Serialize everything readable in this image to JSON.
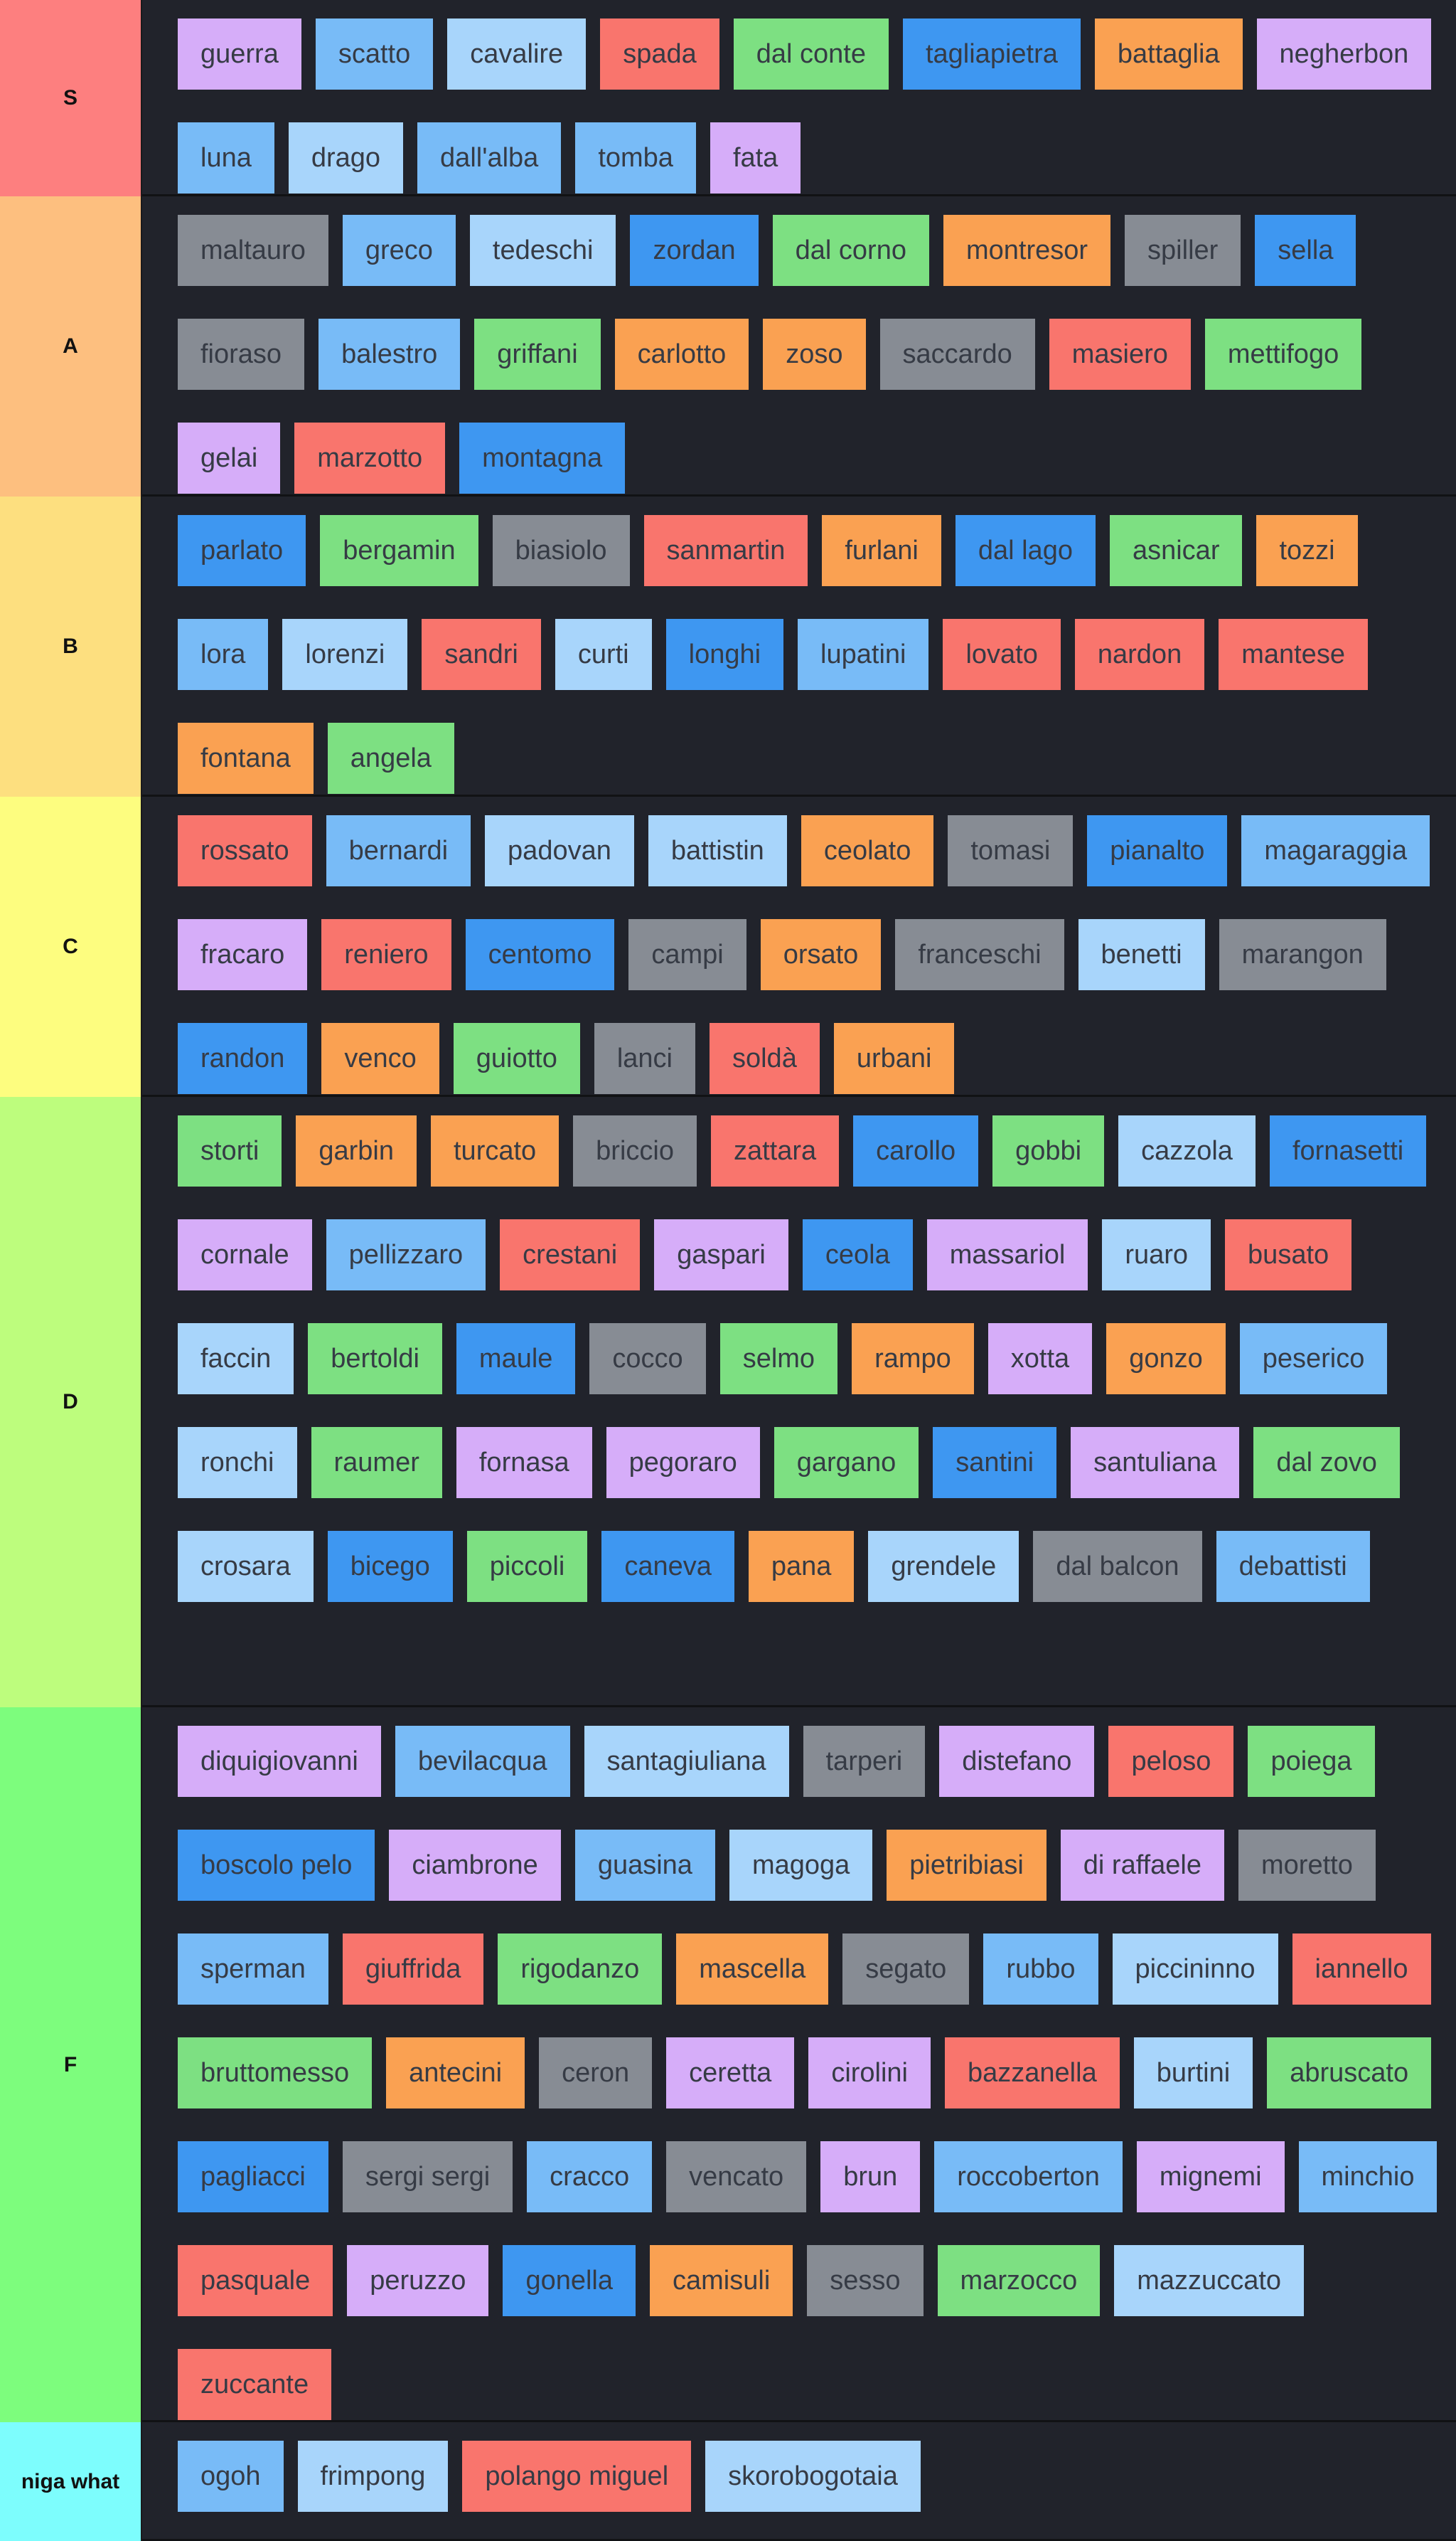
{
  "colors": {
    "purple": "#d6adf9",
    "lightblue": "#78bbf7",
    "paleblue": "#a8d5fb",
    "red": "#f9756d",
    "green": "#7de082",
    "blue": "#3e97f1",
    "orange": "#faa152",
    "gray": "#878c94",
    "row_background": "#21232b",
    "chip_text": "#363b45"
  },
  "tiers": [
    {
      "label": "S",
      "color": "#fd7f7f",
      "items": [
        {
          "name": "guerra",
          "color": "purple"
        },
        {
          "name": "scatto",
          "color": "lightblue"
        },
        {
          "name": "cavalire",
          "color": "paleblue"
        },
        {
          "name": "spada",
          "color": "red"
        },
        {
          "name": "dal conte",
          "color": "green"
        },
        {
          "name": "tagliapietra",
          "color": "blue"
        },
        {
          "name": "battaglia",
          "color": "orange"
        },
        {
          "name": "negherbon",
          "color": "purple"
        },
        {
          "name": "luna",
          "color": "lightblue"
        },
        {
          "name": "drago",
          "color": "paleblue"
        },
        {
          "name": "dall'alba",
          "color": "lightblue"
        },
        {
          "name": "tomba",
          "color": "lightblue"
        },
        {
          "name": "fata",
          "color": "purple"
        }
      ]
    },
    {
      "label": "A",
      "color": "#fdbf7f",
      "items": [
        {
          "name": "maltauro",
          "color": "gray"
        },
        {
          "name": "greco",
          "color": "lightblue"
        },
        {
          "name": "tedeschi",
          "color": "paleblue"
        },
        {
          "name": "zordan",
          "color": "blue"
        },
        {
          "name": "dal corno",
          "color": "green"
        },
        {
          "name": "montresor",
          "color": "orange"
        },
        {
          "name": "spiller",
          "color": "gray"
        },
        {
          "name": "sella",
          "color": "blue"
        },
        {
          "name": "fioraso",
          "color": "gray"
        },
        {
          "name": "balestro",
          "color": "lightblue"
        },
        {
          "name": "griffani",
          "color": "green"
        },
        {
          "name": "carlotto",
          "color": "orange"
        },
        {
          "name": "zoso",
          "color": "orange"
        },
        {
          "name": "saccardo",
          "color": "gray"
        },
        {
          "name": "masiero",
          "color": "red"
        },
        {
          "name": "mettifogo",
          "color": "green"
        },
        {
          "name": "gelai",
          "color": "purple"
        },
        {
          "name": "marzotto",
          "color": "red"
        },
        {
          "name": "montagna",
          "color": "blue"
        }
      ]
    },
    {
      "label": "B",
      "color": "#fddf7f",
      "items": [
        {
          "name": "parlato",
          "color": "blue"
        },
        {
          "name": "bergamin",
          "color": "green"
        },
        {
          "name": "biasiolo",
          "color": "gray"
        },
        {
          "name": "sanmartin",
          "color": "red"
        },
        {
          "name": "furlani",
          "color": "orange"
        },
        {
          "name": "dal lago",
          "color": "blue"
        },
        {
          "name": "asnicar",
          "color": "green"
        },
        {
          "name": "tozzi",
          "color": "orange"
        },
        {
          "name": "lora",
          "color": "lightblue"
        },
        {
          "name": "lorenzi",
          "color": "paleblue"
        },
        {
          "name": "sandri",
          "color": "red"
        },
        {
          "name": "curti",
          "color": "paleblue"
        },
        {
          "name": "longhi",
          "color": "blue"
        },
        {
          "name": "lupatini",
          "color": "lightblue"
        },
        {
          "name": "lovato",
          "color": "red"
        },
        {
          "name": "nardon",
          "color": "red"
        },
        {
          "name": "mantese",
          "color": "red"
        },
        {
          "name": "fontana",
          "color": "orange"
        },
        {
          "name": "angela",
          "color": "green"
        }
      ]
    },
    {
      "label": "C",
      "color": "#fdfd7f",
      "items": [
        {
          "name": "rossato",
          "color": "red"
        },
        {
          "name": "bernardi",
          "color": "lightblue"
        },
        {
          "name": "padovan",
          "color": "paleblue"
        },
        {
          "name": "battistin",
          "color": "paleblue"
        },
        {
          "name": "ceolato",
          "color": "orange"
        },
        {
          "name": "tomasi",
          "color": "gray"
        },
        {
          "name": "pianalto",
          "color": "blue"
        },
        {
          "name": "magaraggia",
          "color": "lightblue"
        },
        {
          "name": "fracaro",
          "color": "purple"
        },
        {
          "name": "reniero",
          "color": "red"
        },
        {
          "name": "centomo",
          "color": "blue"
        },
        {
          "name": "campi",
          "color": "gray"
        },
        {
          "name": "orsato",
          "color": "orange"
        },
        {
          "name": "franceschi",
          "color": "gray"
        },
        {
          "name": "benetti",
          "color": "paleblue"
        },
        {
          "name": "marangon",
          "color": "gray"
        },
        {
          "name": "randon",
          "color": "blue"
        },
        {
          "name": "venco",
          "color": "orange"
        },
        {
          "name": "guiotto",
          "color": "green"
        },
        {
          "name": "lanci",
          "color": "gray"
        },
        {
          "name": "soldà",
          "color": "red"
        },
        {
          "name": "urbani",
          "color": "orange"
        }
      ]
    },
    {
      "label": "D",
      "color": "#bdfd7d",
      "items": [
        {
          "name": "storti",
          "color": "green"
        },
        {
          "name": "garbin",
          "color": "orange"
        },
        {
          "name": "turcato",
          "color": "orange"
        },
        {
          "name": "briccio",
          "color": "gray"
        },
        {
          "name": "zattara",
          "color": "red"
        },
        {
          "name": "carollo",
          "color": "blue"
        },
        {
          "name": "gobbi",
          "color": "green"
        },
        {
          "name": "cazzola",
          "color": "paleblue"
        },
        {
          "name": "fornasetti",
          "color": "blue"
        },
        {
          "name": "cornale",
          "color": "purple"
        },
        {
          "name": "pellizzaro",
          "color": "lightblue"
        },
        {
          "name": "crestani",
          "color": "red"
        },
        {
          "name": "gaspari",
          "color": "purple"
        },
        {
          "name": "ceola",
          "color": "blue"
        },
        {
          "name": "massariol",
          "color": "purple"
        },
        {
          "name": "ruaro",
          "color": "paleblue"
        },
        {
          "name": "busato",
          "color": "red"
        },
        {
          "name": "faccin",
          "color": "paleblue"
        },
        {
          "name": "bertoldi",
          "color": "green"
        },
        {
          "name": "maule",
          "color": "blue"
        },
        {
          "name": "cocco",
          "color": "gray"
        },
        {
          "name": "selmo",
          "color": "green"
        },
        {
          "name": "rampo",
          "color": "orange"
        },
        {
          "name": "xotta",
          "color": "purple"
        },
        {
          "name": "gonzo",
          "color": "orange"
        },
        {
          "name": "peserico",
          "color": "lightblue"
        },
        {
          "name": "ronchi",
          "color": "paleblue"
        },
        {
          "name": "raumer",
          "color": "green"
        },
        {
          "name": "fornasa",
          "color": "purple"
        },
        {
          "name": "pegoraro",
          "color": "purple"
        },
        {
          "name": "gargano",
          "color": "green"
        },
        {
          "name": "santini",
          "color": "blue"
        },
        {
          "name": "santuliana",
          "color": "purple"
        },
        {
          "name": "dal zovo",
          "color": "green"
        },
        {
          "name": "crosara",
          "color": "paleblue"
        },
        {
          "name": "bicego",
          "color": "blue"
        },
        {
          "name": "piccoli",
          "color": "green"
        },
        {
          "name": "caneva",
          "color": "blue"
        },
        {
          "name": "pana",
          "color": "orange"
        },
        {
          "name": "grendele",
          "color": "paleblue"
        },
        {
          "name": "dal balcon",
          "color": "gray"
        },
        {
          "name": "debattisti",
          "color": "lightblue"
        }
      ]
    },
    {
      "label": "F",
      "color": "#7dfd7d",
      "items": [
        {
          "name": "diquigiovanni",
          "color": "purple"
        },
        {
          "name": "bevilacqua",
          "color": "lightblue"
        },
        {
          "name": "santagiuliana",
          "color": "paleblue"
        },
        {
          "name": "tarperi",
          "color": "gray"
        },
        {
          "name": "distefano",
          "color": "purple"
        },
        {
          "name": "peloso",
          "color": "red"
        },
        {
          "name": "poiega",
          "color": "green"
        },
        {
          "name": "boscolo pelo",
          "color": "blue"
        },
        {
          "name": "ciambrone",
          "color": "purple"
        },
        {
          "name": "guasina",
          "color": "lightblue"
        },
        {
          "name": "magoga",
          "color": "paleblue"
        },
        {
          "name": "pietribiasi",
          "color": "orange"
        },
        {
          "name": "di raffaele",
          "color": "purple"
        },
        {
          "name": "moretto",
          "color": "gray"
        },
        {
          "name": "sperman",
          "color": "lightblue"
        },
        {
          "name": "giuffrida",
          "color": "red"
        },
        {
          "name": "rigodanzo",
          "color": "green"
        },
        {
          "name": "mascella",
          "color": "orange"
        },
        {
          "name": "segato",
          "color": "gray"
        },
        {
          "name": "rubbo",
          "color": "lightblue"
        },
        {
          "name": "piccininno",
          "color": "paleblue"
        },
        {
          "name": "iannello",
          "color": "red"
        },
        {
          "name": "bruttomesso",
          "color": "green"
        },
        {
          "name": "antecini",
          "color": "orange"
        },
        {
          "name": "ceron",
          "color": "gray"
        },
        {
          "name": "ceretta",
          "color": "purple"
        },
        {
          "name": "cirolini",
          "color": "purple"
        },
        {
          "name": "bazzanella",
          "color": "red"
        },
        {
          "name": "burtini",
          "color": "paleblue"
        },
        {
          "name": "abruscato",
          "color": "green"
        },
        {
          "name": "pagliacci",
          "color": "blue"
        },
        {
          "name": "sergi sergi",
          "color": "gray"
        },
        {
          "name": "cracco",
          "color": "lightblue"
        },
        {
          "name": "vencato",
          "color": "gray"
        },
        {
          "name": "brun",
          "color": "purple"
        },
        {
          "name": "roccoberton",
          "color": "lightblue"
        },
        {
          "name": "mignemi",
          "color": "purple"
        },
        {
          "name": "minchio",
          "color": "lightblue"
        },
        {
          "name": "pasquale",
          "color": "red"
        },
        {
          "name": "peruzzo",
          "color": "purple"
        },
        {
          "name": "gonella",
          "color": "blue"
        },
        {
          "name": "camisuli",
          "color": "orange"
        },
        {
          "name": "sesso",
          "color": "gray"
        },
        {
          "name": "marzocco",
          "color": "green"
        },
        {
          "name": "mazzuccato",
          "color": "paleblue"
        },
        {
          "name": "zuccante",
          "color": "red"
        }
      ]
    },
    {
      "label": "niga what",
      "color": "#7dfdfd",
      "items": [
        {
          "name": "ogoh",
          "color": "lightblue"
        },
        {
          "name": "frimpong",
          "color": "paleblue"
        },
        {
          "name": "polango miguel",
          "color": "red"
        },
        {
          "name": "skorobogotaia",
          "color": "paleblue"
        }
      ]
    }
  ]
}
